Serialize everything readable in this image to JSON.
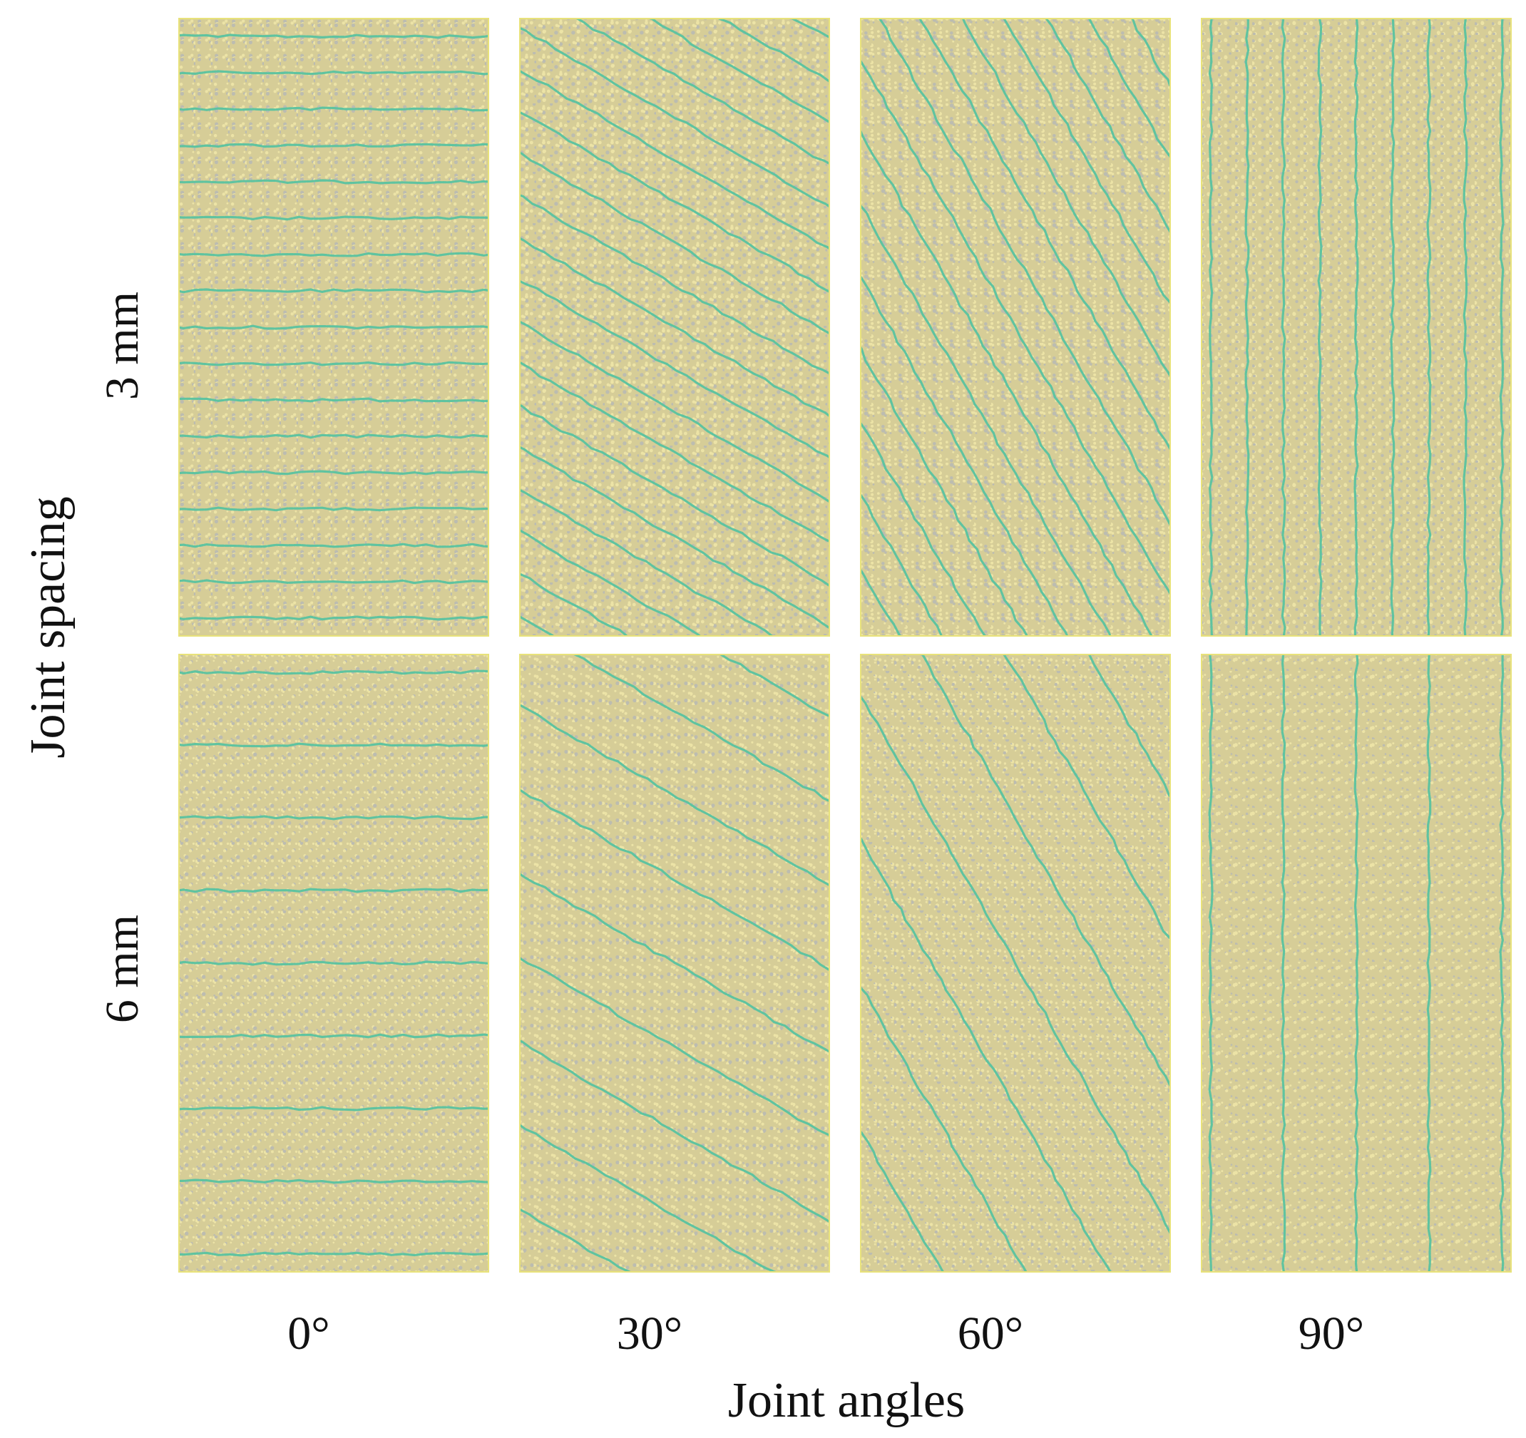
{
  "figure": {
    "x_axis_title": "Joint angles",
    "y_axis_title": "Joint spacing",
    "columns": [
      {
        "label": "0°",
        "angle_deg": 0
      },
      {
        "label": "30°",
        "angle_deg": 30
      },
      {
        "label": "60°",
        "angle_deg": 60
      },
      {
        "label": "90°",
        "angle_deg": 90
      }
    ],
    "rows": [
      {
        "label": "3 mm",
        "spacing_mm": 3
      },
      {
        "label": "6 mm",
        "spacing_mm": 6
      }
    ],
    "colors": {
      "particle_base": "#d6cd97",
      "particle_light": "#ece3a6",
      "particle_grey": "#bcbcb0",
      "joint": "#5fc3a0",
      "panel_edge": "#e8e27a",
      "background": "#ffffff"
    }
  }
}
